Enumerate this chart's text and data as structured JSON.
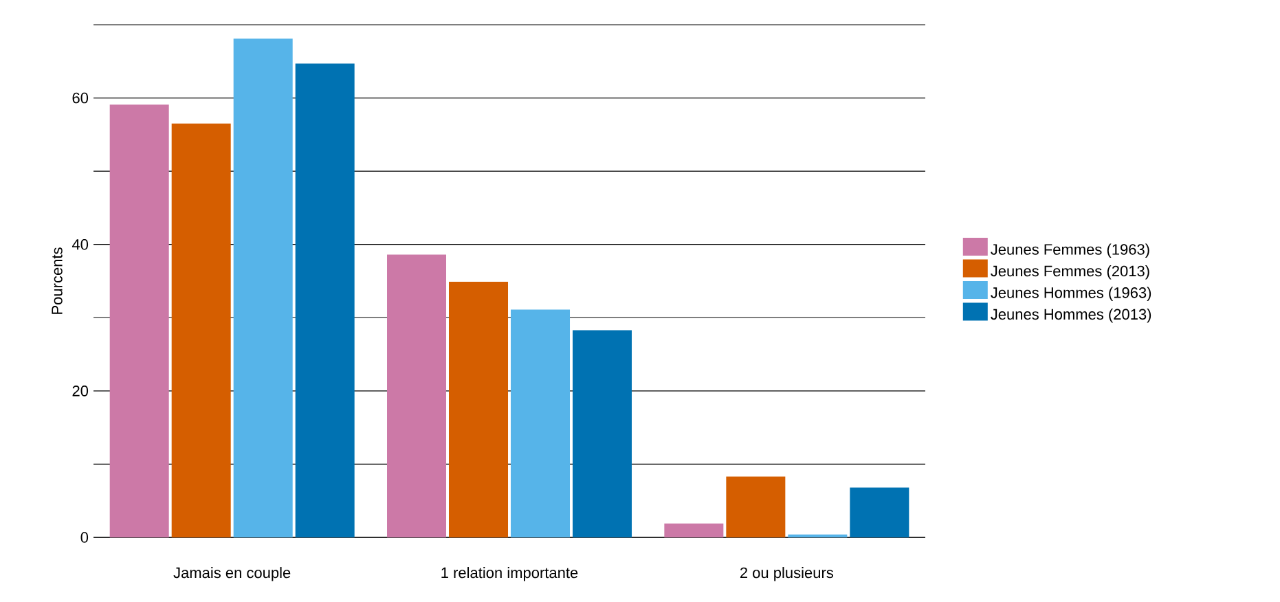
{
  "chart_data": {
    "type": "bar",
    "ylabel": "Pourcents",
    "categories": [
      "Jamais en couple",
      "1 relation importante",
      "2 ou plusieurs"
    ],
    "series": [
      {
        "name": "Jeunes Femmes (1963)",
        "color": "#cc79a7",
        "values": [
          59.1,
          38.6,
          1.9
        ]
      },
      {
        "name": "Jeunes Femmes (2013)",
        "color": "#d55e00",
        "values": [
          56.5,
          34.9,
          8.3
        ]
      },
      {
        "name": "Jeunes Hommes (1963)",
        "color": "#56b4e9",
        "values": [
          68.1,
          31.1,
          0.4
        ]
      },
      {
        "name": "Jeunes Hommes (2013)",
        "color": "#0072b2",
        "values": [
          64.7,
          28.3,
          6.8
        ]
      }
    ],
    "ylim": [
      0,
      70
    ],
    "yticks": [
      0,
      {
        "value": 10,
        "label": null
      },
      20,
      {
        "value": 30,
        "label": null
      },
      40,
      {
        "value": 50,
        "label": null
      },
      60,
      {
        "value": 70,
        "label": null
      }
    ],
    "grid": "y",
    "legend": "right"
  }
}
